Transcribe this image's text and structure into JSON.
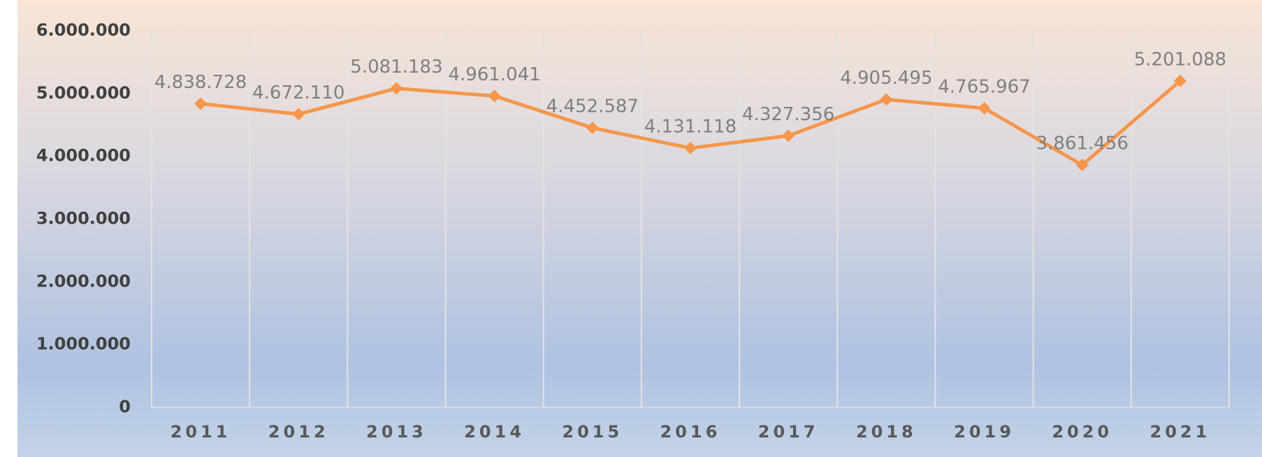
{
  "chart_data": {
    "type": "line",
    "categories": [
      "2011",
      "2012",
      "2013",
      "2014",
      "2015",
      "2016",
      "2017",
      "2018",
      "2019",
      "2020",
      "2021"
    ],
    "series": [
      {
        "color": "#f5964a",
        "values": [
          4838728,
          4672110,
          5081183,
          4961041,
          4452587,
          4131118,
          4327356,
          4905495,
          4765967,
          3861456,
          5201088
        ],
        "value_labels": [
          "4.838.728",
          "4.672.110",
          "5.081.183",
          "4.961.041",
          "4.452.587",
          "4.131.118",
          "4.327.356",
          "4.905.495",
          "4.765.967",
          "3.861.456",
          "5.201.088"
        ]
      }
    ],
    "ylim": [
      0,
      6000000
    ],
    "yticks": [
      0,
      {
        "value": 1000000,
        "label": "1.000.000"
      },
      {
        "value": 2000000,
        "label": "2.000.000"
      },
      {
        "value": 3000000,
        "label": "3.000.000"
      },
      {
        "value": 4000000,
        "label": "4.000.000"
      },
      {
        "value": 5000000,
        "label": "5.000.000"
      },
      {
        "value": 6000000,
        "label": "6.000.000"
      }
    ],
    "grid": true
  }
}
